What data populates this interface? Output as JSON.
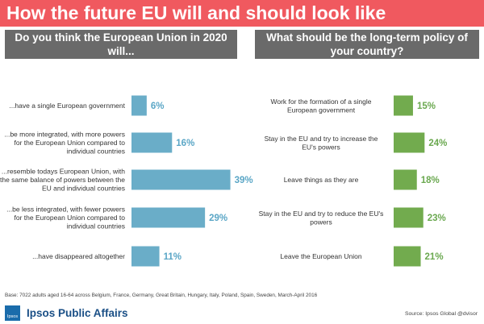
{
  "title": "How the future EU will and should look like",
  "colors": {
    "title_bg": "#f0595f",
    "header_bg": "#6a6a6a",
    "left_bar": "#6aadc8",
    "left_label": "#5aa6c6",
    "right_bar": "#72ab4e",
    "right_label": "#6aa84f",
    "brand": "#1a4f86",
    "logo": "#1a6cab"
  },
  "chart_data": [
    {
      "type": "bar",
      "orientation": "horizontal",
      "title": "Do you think the European Union in 2020 will...",
      "categories": [
        "...have a single European government",
        "...be more integrated, with more powers for the European Union compared to individual countries",
        "...resemble todays European Union, with the same balance of powers between the EU and individual countries",
        "...be less integrated, with fewer powers for the European Union compared to individual countries",
        "...have disappeared altogether"
      ],
      "values": [
        6,
        16,
        39,
        29,
        11
      ],
      "value_suffix": "%",
      "xlim": [
        0,
        42
      ],
      "grid": false
    },
    {
      "type": "bar",
      "orientation": "horizontal",
      "title": "What should be the long-term policy of your country?",
      "categories": [
        "Work for the formation of a single European government",
        "Stay in the EU and try to increase the EU's powers",
        "Leave things as they are",
        "Stay in the EU and try to reduce the EU's powers",
        "Leave the European Union"
      ],
      "values": [
        15,
        24,
        18,
        23,
        21
      ],
      "value_suffix": "%",
      "xlim": [
        0,
        67
      ],
      "grid": false
    }
  ],
  "footnote": "Base: 7022  adults aged 16-64 across Belgium, France, Germany, Great Britain, Hungary, Italy, Poland, Spain, Sweden, March-April 2016",
  "brand": {
    "logo_text": "Ipsos",
    "name": "Ipsos Public Affairs"
  },
  "source": "Source: Ipsos Global @dvisor"
}
